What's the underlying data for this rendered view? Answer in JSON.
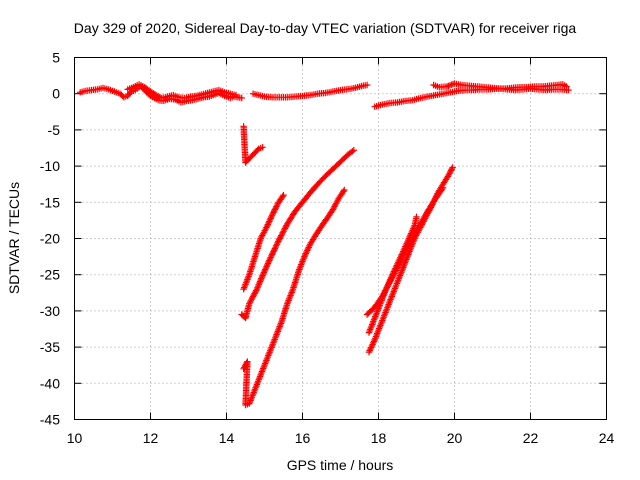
{
  "chart_data": {
    "type": "scatter",
    "title": "Day 329 of 2020, Sidereal Day-to-day VTEC variation (SDTVAR) for receiver riga",
    "xlabel": "GPS time / hours",
    "ylabel": "SDTVAR / TECUs",
    "xlim": [
      10,
      24
    ],
    "ylim": [
      -45,
      5
    ],
    "xticks": [
      "10",
      "12",
      "14",
      "16",
      "18",
      "20",
      "22",
      "24"
    ],
    "yticks": [
      "5",
      "0",
      "-5",
      "-10",
      "-15",
      "-20",
      "-25",
      "-30",
      "-35",
      "-40",
      "-45"
    ],
    "grid": true,
    "marker": "+",
    "color": "#ff0000",
    "series": [
      {
        "points": [
          [
            10.15,
            0.2
          ],
          [
            10.3,
            0.4
          ],
          [
            10.45,
            0.5
          ],
          [
            10.6,
            0.6
          ],
          [
            10.75,
            0.8
          ],
          [
            10.9,
            0.6
          ],
          [
            11.05,
            0.3
          ],
          [
            11.2,
            0.0
          ],
          [
            11.3,
            -0.5
          ],
          [
            11.4,
            -0.3
          ],
          [
            11.5,
            0.3
          ],
          [
            11.6,
            0.5
          ],
          [
            11.7,
            0.9
          ],
          [
            11.75,
            1.1
          ],
          [
            11.8,
            0.7
          ],
          [
            11.9,
            0.2
          ],
          [
            12.0,
            -0.3
          ],
          [
            12.1,
            -0.6
          ],
          [
            12.2,
            -0.9
          ],
          [
            12.35,
            -1.0
          ],
          [
            12.5,
            -0.7
          ],
          [
            12.65,
            -0.8
          ],
          [
            12.8,
            -1.2
          ],
          [
            12.95,
            -1.0
          ],
          [
            13.1,
            -0.9
          ],
          [
            13.25,
            -0.7
          ],
          [
            13.4,
            -0.5
          ],
          [
            13.55,
            -0.4
          ],
          [
            13.7,
            -0.1
          ],
          [
            13.8,
            0.1
          ],
          [
            13.9,
            -0.2
          ],
          [
            14.0,
            -0.4
          ],
          [
            14.1,
            -0.6
          ],
          [
            14.2,
            -0.4
          ],
          [
            14.3,
            -0.5
          ],
          [
            14.4,
            -0.6
          ]
        ]
      },
      {
        "points": [
          [
            11.4,
            0.6
          ],
          [
            11.55,
            0.9
          ],
          [
            11.7,
            1.3
          ],
          [
            11.85,
            0.9
          ],
          [
            12.0,
            0.3
          ],
          [
            12.15,
            -0.2
          ],
          [
            12.3,
            -0.6
          ],
          [
            12.45,
            -0.4
          ],
          [
            12.6,
            -0.2
          ],
          [
            12.75,
            -0.5
          ],
          [
            12.9,
            -0.6
          ],
          [
            13.05,
            -0.4
          ],
          [
            13.2,
            -0.3
          ],
          [
            13.35,
            -0.1
          ],
          [
            13.5,
            0.1
          ],
          [
            13.65,
            0.3
          ],
          [
            13.8,
            0.5
          ],
          [
            13.95,
            0.2
          ],
          [
            14.1,
            0.0
          ],
          [
            14.25,
            -0.2
          ]
        ]
      },
      {
        "points": [
          [
            14.45,
            -4.5
          ],
          [
            14.5,
            -9.5
          ],
          [
            14.85,
            -7.6
          ],
          [
            14.95,
            -7.4
          ]
        ]
      },
      {
        "points": [
          [
            14.7,
            0.0
          ],
          [
            14.85,
            -0.2
          ],
          [
            15.0,
            -0.4
          ],
          [
            15.2,
            -0.5
          ],
          [
            15.4,
            -0.5
          ],
          [
            15.6,
            -0.5
          ],
          [
            15.8,
            -0.4
          ],
          [
            16.0,
            -0.3
          ],
          [
            16.2,
            -0.2
          ],
          [
            16.4,
            0.0
          ],
          [
            16.6,
            0.1
          ],
          [
            16.8,
            0.3
          ],
          [
            17.0,
            0.5
          ],
          [
            17.15,
            0.6
          ],
          [
            17.3,
            0.7
          ],
          [
            17.45,
            0.9
          ],
          [
            17.6,
            1.1
          ],
          [
            17.7,
            1.2
          ]
        ]
      },
      {
        "points": [
          [
            14.45,
            -27.0
          ],
          [
            14.6,
            -25.0
          ],
          [
            14.75,
            -22.5
          ],
          [
            14.9,
            -20.0
          ],
          [
            15.05,
            -18.5
          ],
          [
            15.2,
            -16.8
          ],
          [
            15.35,
            -15.2
          ],
          [
            15.5,
            -14.0
          ]
        ]
      },
      {
        "points": [
          [
            14.4,
            -30.5
          ],
          [
            14.5,
            -31.0
          ],
          [
            14.6,
            -29.0
          ],
          [
            14.8,
            -27.0
          ],
          [
            15.0,
            -24.5
          ],
          [
            15.2,
            -22.2
          ],
          [
            15.4,
            -20.0
          ],
          [
            15.6,
            -18.0
          ],
          [
            15.8,
            -16.3
          ],
          [
            16.0,
            -15.0
          ],
          [
            16.2,
            -13.7
          ],
          [
            16.4,
            -12.5
          ],
          [
            16.6,
            -11.4
          ],
          [
            16.8,
            -10.4
          ],
          [
            17.0,
            -9.4
          ],
          [
            17.2,
            -8.4
          ],
          [
            17.35,
            -7.8
          ]
        ]
      },
      {
        "points": [
          [
            14.45,
            -38.0
          ],
          [
            14.55,
            -37.0
          ],
          [
            14.5,
            -43.0
          ],
          [
            14.6,
            -42.8
          ],
          [
            14.7,
            -41.5
          ],
          [
            14.85,
            -39.5
          ],
          [
            15.0,
            -37.5
          ],
          [
            15.15,
            -35.5
          ],
          [
            15.3,
            -33.5
          ],
          [
            15.45,
            -31.5
          ],
          [
            15.6,
            -29.0
          ],
          [
            15.75,
            -27.0
          ],
          [
            15.9,
            -24.5
          ],
          [
            16.05,
            -22.5
          ],
          [
            16.2,
            -20.8
          ],
          [
            16.35,
            -19.5
          ],
          [
            16.5,
            -18.3
          ],
          [
            16.65,
            -17.2
          ],
          [
            16.8,
            -16.0
          ],
          [
            16.95,
            -14.5
          ],
          [
            17.1,
            -13.3
          ]
        ]
      },
      {
        "points": [
          [
            17.9,
            -1.8
          ],
          [
            18.1,
            -1.5
          ],
          [
            18.3,
            -1.3
          ],
          [
            18.5,
            -1.2
          ],
          [
            18.7,
            -1.0
          ],
          [
            18.9,
            -0.9
          ],
          [
            19.1,
            -0.6
          ],
          [
            19.3,
            -0.4
          ],
          [
            19.5,
            -0.2
          ],
          [
            19.7,
            0.0
          ],
          [
            19.9,
            0.2
          ],
          [
            20.1,
            0.4
          ],
          [
            20.3,
            0.5
          ],
          [
            20.5,
            0.5
          ],
          [
            20.7,
            0.6
          ],
          [
            20.9,
            0.6
          ],
          [
            21.1,
            0.7
          ],
          [
            21.3,
            0.7
          ],
          [
            21.5,
            0.8
          ],
          [
            21.7,
            0.9
          ],
          [
            21.9,
            0.9
          ],
          [
            22.1,
            1.0
          ],
          [
            22.3,
            1.0
          ],
          [
            22.5,
            1.1
          ],
          [
            22.7,
            1.2
          ],
          [
            22.85,
            1.3
          ],
          [
            22.95,
            1.0
          ]
        ]
      },
      {
        "points": [
          [
            19.45,
            1.2
          ],
          [
            19.6,
            0.9
          ],
          [
            19.8,
            1.0
          ],
          [
            20.0,
            1.4
          ],
          [
            20.2,
            1.2
          ],
          [
            20.4,
            1.1
          ],
          [
            20.6,
            1.0
          ],
          [
            20.8,
            0.9
          ],
          [
            21.0,
            0.8
          ],
          [
            21.2,
            0.7
          ],
          [
            21.4,
            0.6
          ],
          [
            21.6,
            0.5
          ],
          [
            21.8,
            0.6
          ],
          [
            22.0,
            0.7
          ],
          [
            22.2,
            0.6
          ],
          [
            22.4,
            0.5
          ],
          [
            22.6,
            0.6
          ],
          [
            22.8,
            0.6
          ],
          [
            23.0,
            0.5
          ]
        ]
      },
      {
        "points": [
          [
            17.75,
            -33.0
          ],
          [
            17.9,
            -31.0
          ],
          [
            18.05,
            -29.0
          ],
          [
            18.2,
            -27.0
          ],
          [
            18.35,
            -25.2
          ],
          [
            18.5,
            -23.5
          ],
          [
            18.65,
            -21.8
          ],
          [
            18.8,
            -20.0
          ],
          [
            18.95,
            -18.2
          ],
          [
            19.0,
            -17.0
          ]
        ]
      },
      {
        "points": [
          [
            17.7,
            -30.5
          ],
          [
            17.9,
            -29.5
          ],
          [
            18.1,
            -28.0
          ],
          [
            18.3,
            -26.0
          ],
          [
            18.5,
            -24.0
          ],
          [
            18.7,
            -21.8
          ],
          [
            18.9,
            -19.8
          ],
          [
            19.1,
            -18.0
          ],
          [
            19.3,
            -16.2
          ],
          [
            19.5,
            -14.5
          ],
          [
            19.7,
            -13.0
          ]
        ]
      },
      {
        "points": [
          [
            17.75,
            -35.7
          ],
          [
            17.9,
            -34.0
          ],
          [
            18.05,
            -32.0
          ],
          [
            18.2,
            -30.0
          ],
          [
            18.35,
            -28.0
          ],
          [
            18.5,
            -26.0
          ],
          [
            18.65,
            -24.0
          ],
          [
            18.8,
            -22.0
          ],
          [
            18.95,
            -20.0
          ],
          [
            19.1,
            -18.5
          ],
          [
            19.25,
            -17.0
          ],
          [
            19.4,
            -15.5
          ],
          [
            19.55,
            -13.8
          ],
          [
            19.7,
            -12.5
          ],
          [
            19.85,
            -11.2
          ],
          [
            19.95,
            -10.2
          ]
        ]
      }
    ]
  }
}
